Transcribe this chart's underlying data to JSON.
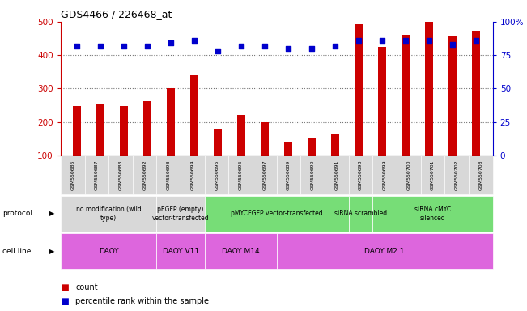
{
  "title": "GDS4466 / 226468_at",
  "samples": [
    "GSM550686",
    "GSM550687",
    "GSM550688",
    "GSM550692",
    "GSM550693",
    "GSM550694",
    "GSM550695",
    "GSM550696",
    "GSM550697",
    "GSM550689",
    "GSM550690",
    "GSM550691",
    "GSM550698",
    "GSM550699",
    "GSM550700",
    "GSM550701",
    "GSM550702",
    "GSM550703"
  ],
  "counts": [
    248,
    252,
    248,
    262,
    300,
    342,
    180,
    220,
    200,
    142,
    150,
    163,
    492,
    425,
    460,
    500,
    455,
    472
  ],
  "percentiles": [
    82,
    82,
    82,
    82,
    84,
    86,
    78,
    82,
    82,
    80,
    80,
    82,
    86,
    86,
    86,
    86,
    83,
    86
  ],
  "bar_color": "#cc0000",
  "dot_color": "#0000cc",
  "ylim_left": [
    100,
    500
  ],
  "ylim_right": [
    0,
    100
  ],
  "yticks_left": [
    100,
    200,
    300,
    400,
    500
  ],
  "yticks_right": [
    0,
    25,
    50,
    75,
    100
  ],
  "grid_lines": [
    200,
    300,
    400
  ],
  "protocol_groups": [
    {
      "label": "no modification (wild\ntype)",
      "start": 0,
      "end": 4,
      "color": "#d8d8d8"
    },
    {
      "label": "pEGFP (empty)\nvector-transfected",
      "start": 4,
      "end": 6,
      "color": "#d8d8d8"
    },
    {
      "label": "pMYCEGFP vector-transfected",
      "start": 6,
      "end": 12,
      "color": "#77dd77"
    },
    {
      "label": "siRNA scrambled",
      "start": 12,
      "end": 13,
      "color": "#77dd77"
    },
    {
      "label": "siRNA cMYC\nsilenced",
      "start": 13,
      "end": 18,
      "color": "#77dd77"
    }
  ],
  "cellline_groups": [
    {
      "label": "DAOY",
      "start": 0,
      "end": 4
    },
    {
      "label": "DAOY V11",
      "start": 4,
      "end": 6
    },
    {
      "label": "DAOY M14",
      "start": 6,
      "end": 9
    },
    {
      "label": "DAOY M2.1",
      "start": 9,
      "end": 18
    }
  ],
  "cellline_color": "#dd66dd",
  "xticklabel_bg": "#d8d8d8",
  "dotted_line_color": "#777777",
  "background_color": "#ffffff",
  "protocol_label": "protocol",
  "cellline_label": "cell line",
  "legend_count_label": "count",
  "legend_pct_label": "percentile rank within the sample",
  "bar_width": 0.35
}
